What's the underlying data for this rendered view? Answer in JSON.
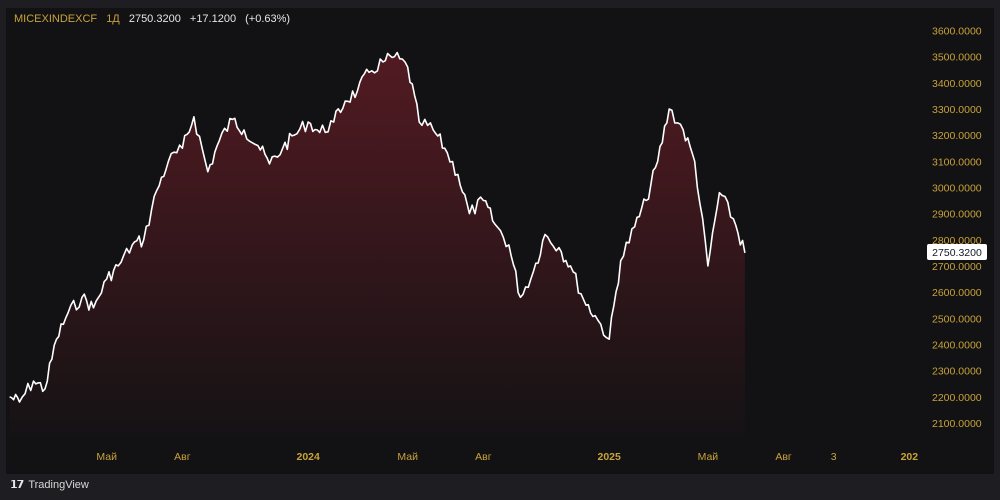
{
  "header": {
    "symbol": "MICEXINDEXCF",
    "interval": "1Д",
    "price": "2750.3200",
    "change": "+17.1200",
    "change_pct": "(+0.63%)"
  },
  "footer": {
    "brand": "TradingView",
    "logo_icon": "tradingview-logo-icon"
  },
  "colors": {
    "line": "#ffffff",
    "accent": "#c8a23a",
    "fill_top": "#6e1e28",
    "background": "#121214"
  },
  "chart_data": {
    "type": "area",
    "y_ticks": [
      "2100.0000",
      "2200.0000",
      "2300.0000",
      "2400.0000",
      "2500.0000",
      "2600.0000",
      "2700.0000",
      "2800.0000",
      "2900.0000",
      "3000.0000",
      "3100.0000",
      "3200.0000",
      "3300.0000",
      "3400.0000",
      "3500.0000",
      "3600.0000"
    ],
    "ylim": [
      2050,
      3640
    ],
    "x_ticks": [
      {
        "label": "Май",
        "date": "2023-05-01",
        "bold": false
      },
      {
        "label": "Авг",
        "date": "2023-08-01",
        "bold": false
      },
      {
        "label": "2024",
        "date": "2024-01-01",
        "bold": true
      },
      {
        "label": "Май",
        "date": "2024-05-01",
        "bold": false
      },
      {
        "label": "Авг",
        "date": "2024-08-01",
        "bold": false
      },
      {
        "label": "2025",
        "date": "2025-01-01",
        "bold": true
      },
      {
        "label": "Май",
        "date": "2025-05-01",
        "bold": false
      },
      {
        "label": "Авг",
        "date": "2025-08-01",
        "bold": false
      },
      {
        "label": "3",
        "date": "2025-10-01",
        "bold": false
      },
      {
        "label": "202",
        "date": "2026-01-01",
        "bold": true
      }
    ],
    "last_price_label": "2750.3200",
    "series": [
      {
        "x": [
          "2023-01-03",
          "2023-01-15",
          "2023-02-01",
          "2023-02-15",
          "2023-03-01",
          "2023-03-15",
          "2023-04-01",
          "2023-04-15",
          "2023-05-01",
          "2023-05-15",
          "2023-06-01",
          "2023-06-15",
          "2023-07-01",
          "2023-07-15",
          "2023-08-01",
          "2023-08-15",
          "2023-09-01",
          "2023-09-15",
          "2023-10-01",
          "2023-10-15",
          "2023-11-01",
          "2023-11-15",
          "2023-12-01",
          "2023-12-15",
          "2024-01-01",
          "2024-01-15",
          "2024-02-01",
          "2024-02-15",
          "2024-03-01",
          "2024-03-15",
          "2024-04-01",
          "2024-04-15",
          "2024-05-01",
          "2024-05-15",
          "2024-06-01",
          "2024-06-15",
          "2024-07-01",
          "2024-07-15",
          "2024-08-01",
          "2024-08-15",
          "2024-09-01",
          "2024-09-15",
          "2024-10-01",
          "2024-10-15",
          "2024-11-01",
          "2024-11-15",
          "2024-12-01",
          "2024-12-15",
          "2025-01-01",
          "2025-01-15",
          "2025-02-01",
          "2025-02-15",
          "2025-03-01",
          "2025-03-15",
          "2025-04-01",
          "2025-04-15",
          "2025-05-01",
          "2025-05-15",
          "2025-06-01",
          "2025-06-15"
        ],
        "values": [
          2200,
          2180,
          2260,
          2230,
          2420,
          2520,
          2580,
          2540,
          2650,
          2700,
          2780,
          2800,
          2990,
          3100,
          3150,
          3270,
          3060,
          3180,
          3260,
          3220,
          3160,
          3090,
          3150,
          3200,
          3250,
          3210,
          3250,
          3330,
          3370,
          3440,
          3480,
          3500,
          3460,
          3250,
          3220,
          3150,
          3050,
          2900,
          2950,
          2860,
          2780,
          2580,
          2680,
          2820,
          2770,
          2700,
          2570,
          2510,
          2420,
          2720,
          2850,
          2950,
          3100,
          3300,
          3220,
          3100,
          2700,
          2980,
          2880,
          2750
        ]
      }
    ]
  }
}
